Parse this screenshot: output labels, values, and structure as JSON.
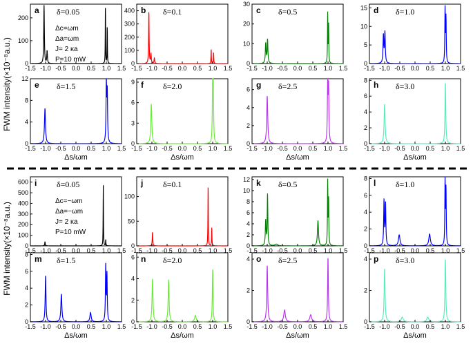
{
  "figure": {
    "ylabel_top": "FWM intensity(×10⁻⁸a.u.)",
    "ylabel_bottom": "FWM intensity(×10⁻⁸a.u.)",
    "xlabel": "Δs/ωm",
    "xticks": [
      "-1.5",
      "-1.0",
      "-0.5",
      "0.0",
      "0.5",
      "1.0",
      "1.5"
    ],
    "params_top": [
      "Δc=ωm",
      "Δa=ωm",
      "J= 2 κa",
      "P=10 mW"
    ],
    "params_bottom": [
      "Δc=−ωm",
      "Δa=−ωm",
      "J= 2 κa",
      "P=10 mW"
    ]
  },
  "chart_data": [
    {
      "type": "line",
      "panel": "a",
      "title": "δ=0.05",
      "color": "#000000",
      "ylim": [
        0,
        260
      ],
      "yticks": [
        0,
        100,
        200
      ],
      "peaks": [
        {
          "x": -1.05,
          "h": 255,
          "w": 0.012
        },
        {
          "x": -0.95,
          "h": 55,
          "w": 0.012
        },
        {
          "x": 0.97,
          "h": 255,
          "w": 0.006
        },
        {
          "x": 1.03,
          "h": 165,
          "w": 0.006
        }
      ]
    },
    {
      "type": "line",
      "panel": "b",
      "title": "δ=0.1",
      "color": "#ff0000",
      "ylim": [
        0,
        450
      ],
      "yticks": [
        0,
        100,
        200,
        300,
        400
      ],
      "peaks": [
        {
          "x": -1.1,
          "h": 395,
          "w": 0.01
        },
        {
          "x": -1.03,
          "h": 70,
          "w": 0.012
        },
        {
          "x": -0.92,
          "h": 40,
          "w": 0.012
        },
        {
          "x": 0.95,
          "h": 110,
          "w": 0.007
        },
        {
          "x": 1.03,
          "h": 85,
          "w": 0.007
        }
      ]
    },
    {
      "type": "line",
      "panel": "c",
      "title": "δ=0.5",
      "color": "#008000",
      "ylim": [
        0,
        30
      ],
      "yticks": [
        0,
        10,
        20,
        30
      ],
      "peaks": [
        {
          "x": -1.05,
          "h": 10,
          "w": 0.015
        },
        {
          "x": -0.99,
          "h": 12,
          "w": 0.015
        },
        {
          "x": 0.99,
          "h": 25,
          "w": 0.008
        },
        {
          "x": 1.02,
          "h": 19,
          "w": 0.008
        }
      ]
    },
    {
      "type": "line",
      "panel": "d",
      "title": "δ=1.0",
      "color": "#0000ff",
      "ylim": [
        0,
        16
      ],
      "yticks": [
        0,
        5,
        10,
        15
      ],
      "peaks": [
        {
          "x": -1.04,
          "h": 7.5,
          "w": 0.015
        },
        {
          "x": -0.99,
          "h": 8.3,
          "w": 0.015
        },
        {
          "x": 0.99,
          "h": 14.5,
          "w": 0.01
        },
        {
          "x": 1.02,
          "h": 12,
          "w": 0.01
        }
      ]
    },
    {
      "type": "line",
      "panel": "e",
      "title": "δ=1.5",
      "color": "#0000ff",
      "ylim": [
        0,
        12
      ],
      "yticks": [
        0,
        4,
        8,
        12
      ],
      "peaks": [
        {
          "x": -1.02,
          "h": 6.5,
          "w": 0.02
        },
        {
          "x": 1.0,
          "h": 11,
          "w": 0.013
        },
        {
          "x": 1.03,
          "h": 9,
          "w": 0.013
        }
      ]
    },
    {
      "type": "line",
      "panel": "f",
      "title": "δ=2.0",
      "color": "#66ee33",
      "ylim": [
        0,
        9.5
      ],
      "yticks": [
        0,
        3,
        6,
        9
      ],
      "peaks": [
        {
          "x": -1.02,
          "h": 5.8,
          "w": 0.02
        },
        {
          "x": 1.0,
          "h": 9,
          "w": 0.012
        },
        {
          "x": 1.02,
          "h": 7.5,
          "w": 0.012
        }
      ]
    },
    {
      "type": "line",
      "panel": "g",
      "title": "δ=2.5",
      "color": "#bb33ee",
      "ylim": [
        0,
        7.2
      ],
      "yticks": [
        0,
        2,
        4,
        6
      ],
      "peaks": [
        {
          "x": -1.0,
          "h": 5.3,
          "w": 0.02
        },
        {
          "x": 0.99,
          "h": 6.5,
          "w": 0.013
        },
        {
          "x": 1.02,
          "h": 6.0,
          "w": 0.013
        }
      ]
    },
    {
      "type": "line",
      "panel": "h",
      "title": "δ=3.0",
      "color": "#55eebb",
      "ylim": [
        0,
        8.2
      ],
      "yticks": [
        0,
        2,
        4,
        6,
        8
      ],
      "peaks": [
        {
          "x": -1.0,
          "h": 5.0,
          "w": 0.02
        },
        {
          "x": 1.0,
          "h": 7.7,
          "w": 0.015
        }
      ]
    },
    {
      "type": "line",
      "panel": "i",
      "title": "δ=0.05",
      "color": "#000000",
      "ylim": [
        0,
        650
      ],
      "yticks": [
        0,
        100,
        200,
        300,
        400,
        500,
        600
      ],
      "peaks": [
        {
          "x": -1.02,
          "h": 40,
          "w": 0.01
        },
        {
          "x": 0.9,
          "h": 570,
          "w": 0.006
        },
        {
          "x": 0.98,
          "h": 60,
          "w": 0.006
        }
      ]
    },
    {
      "type": "line",
      "panel": "j",
      "title": "δ=0.1",
      "color": "#ff0000",
      "ylim": [
        0,
        140
      ],
      "yticks": [
        0,
        50,
        100
      ],
      "peaks": [
        {
          "x": -0.98,
          "h": 28,
          "w": 0.01
        },
        {
          "x": 0.85,
          "h": 123,
          "w": 0.007
        },
        {
          "x": 0.97,
          "h": 38,
          "w": 0.007
        }
      ]
    },
    {
      "type": "line",
      "panel": "k",
      "title": "δ=0.5",
      "color": "#008000",
      "ylim": [
        0,
        12.5
      ],
      "yticks": [
        0,
        2,
        4,
        6,
        8,
        10,
        12
      ],
      "peaks": [
        {
          "x": -1.05,
          "h": 4.5,
          "w": 0.015
        },
        {
          "x": -0.99,
          "h": 9.2,
          "w": 0.012
        },
        {
          "x": -0.7,
          "h": 0.3,
          "w": 0.05
        },
        {
          "x": 0.67,
          "h": 4.6,
          "w": 0.02
        },
        {
          "x": 0.99,
          "h": 11.5,
          "w": 0.009
        },
        {
          "x": 1.02,
          "h": 8,
          "w": 0.009
        }
      ]
    },
    {
      "type": "line",
      "panel": "l",
      "title": "δ=1.0",
      "color": "#0000ff",
      "ylim": [
        0,
        8.2
      ],
      "yticks": [
        0,
        2,
        4,
        6,
        8
      ],
      "peaks": [
        {
          "x": -1.02,
          "h": 5.3,
          "w": 0.013
        },
        {
          "x": -0.97,
          "h": 5.0,
          "w": 0.013
        },
        {
          "x": -0.52,
          "h": 1.3,
          "w": 0.03
        },
        {
          "x": 0.48,
          "h": 1.4,
          "w": 0.03
        },
        {
          "x": 0.99,
          "h": 7.6,
          "w": 0.01
        },
        {
          "x": 1.02,
          "h": 6.5,
          "w": 0.01
        }
      ]
    },
    {
      "type": "line",
      "panel": "m",
      "title": "δ=1.5",
      "color": "#0000ff",
      "ylim": [
        0,
        8.2
      ],
      "yticks": [
        0,
        2,
        4,
        6,
        8
      ],
      "peaks": [
        {
          "x": -1.0,
          "h": 5.5,
          "w": 0.015
        },
        {
          "x": -0.48,
          "h": 3.3,
          "w": 0.02
        },
        {
          "x": 0.48,
          "h": 1.1,
          "w": 0.025
        },
        {
          "x": 0.98,
          "h": 6.6,
          "w": 0.012
        },
        {
          "x": 1.02,
          "h": 5.5,
          "w": 0.012
        }
      ]
    },
    {
      "type": "line",
      "panel": "n",
      "title": "δ=2.0",
      "color": "#66ee33",
      "ylim": [
        0,
        6.4
      ],
      "yticks": [
        0,
        2,
        4,
        6
      ],
      "peaks": [
        {
          "x": -0.98,
          "h": 4.0,
          "w": 0.018
        },
        {
          "x": -0.45,
          "h": 3.9,
          "w": 0.018
        },
        {
          "x": 0.43,
          "h": 0.6,
          "w": 0.03
        },
        {
          "x": 1.0,
          "h": 4.9,
          "w": 0.013
        }
      ]
    },
    {
      "type": "line",
      "panel": "o",
      "title": "δ=2.5",
      "color": "#bb33ee",
      "ylim": [
        0,
        4.4
      ],
      "yticks": [
        0,
        2,
        4
      ],
      "peaks": [
        {
          "x": -1.0,
          "h": 3.6,
          "w": 0.018
        },
        {
          "x": -0.43,
          "h": 0.75,
          "w": 0.03
        },
        {
          "x": 0.43,
          "h": 0.45,
          "w": 0.035
        },
        {
          "x": 1.0,
          "h": 4.1,
          "w": 0.014
        }
      ]
    },
    {
      "type": "line",
      "panel": "p",
      "title": "δ=3.0",
      "color": "#55eebb",
      "ylim": [
        0,
        4.4
      ],
      "yticks": [
        0,
        2,
        4
      ],
      "peaks": [
        {
          "x": -1.0,
          "h": 3.4,
          "w": 0.018
        },
        {
          "x": -0.42,
          "h": 0.3,
          "w": 0.04
        },
        {
          "x": 0.42,
          "h": 0.3,
          "w": 0.04
        },
        {
          "x": 1.0,
          "h": 4.0,
          "w": 0.016
        }
      ]
    }
  ]
}
